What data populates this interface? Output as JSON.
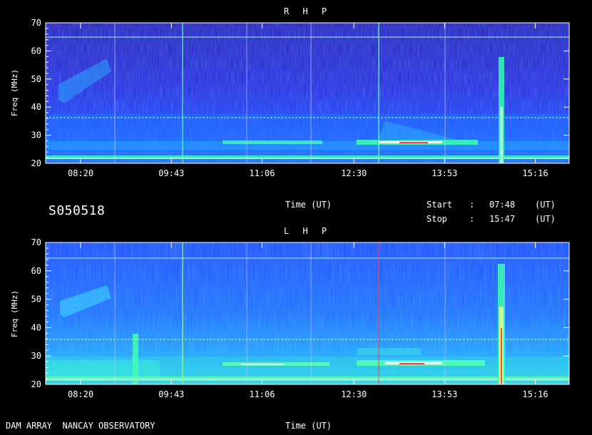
{
  "panels": [
    {
      "title": "R H P",
      "ylabel": "Freq (MHz)",
      "ylim": [
        20,
        70
      ],
      "yticks": [
        "20",
        "30",
        "40",
        "50",
        "60",
        "70"
      ],
      "xticks": [
        "08:20",
        "09:43",
        "11:06",
        "12:30",
        "13:53",
        "15:16"
      ]
    },
    {
      "title": "L H P",
      "ylabel": "Freq (MHz)",
      "ylim": [
        20,
        70
      ],
      "yticks": [
        "20",
        "30",
        "40",
        "50",
        "60",
        "70"
      ],
      "xticks": [
        "08:20",
        "09:43",
        "11:06",
        "12:30",
        "13:53",
        "15:16"
      ]
    }
  ],
  "session_id": "S050518",
  "time_axis_label": "Time (UT)",
  "start": {
    "label": "Start",
    "value": "07:48",
    "unit": "(UT)"
  },
  "stop": {
    "label": "Stop",
    "value": "15:47",
    "unit": "(UT)"
  },
  "footer": {
    "observatory": "DAM ARRAY  NANCAY OBSERVATORY",
    "time_label": "Time (UT)"
  },
  "chart_data": [
    {
      "type": "heatmap",
      "title": "R H P",
      "xlabel": "Time (UT)",
      "ylabel": "Freq (MHz)",
      "xlim": [
        "07:48",
        "15:47"
      ],
      "ylim": [
        20,
        70
      ],
      "x_ticks": [
        "08:20",
        "09:43",
        "11:06",
        "12:30",
        "13:53",
        "15:16"
      ],
      "y_ticks": [
        20,
        30,
        40,
        50,
        60,
        70
      ],
      "colormap": [
        "#1a1090",
        "#1c30ff",
        "#2aa0ff",
        "#30ffb0",
        "#ffffff",
        "#ff2020"
      ],
      "features": [
        {
          "kind": "type-III burst",
          "time": "15:00",
          "freq_range": [
            20,
            58
          ]
        },
        {
          "kind": "continuum band",
          "time_range": [
            "11:00",
            "14:30"
          ],
          "freq": 27
        },
        {
          "kind": "interference line",
          "freq": 64.5
        }
      ]
    },
    {
      "type": "heatmap",
      "title": "L H P",
      "xlabel": "Time (UT)",
      "ylabel": "Freq (MHz)",
      "xlim": [
        "07:48",
        "15:47"
      ],
      "ylim": [
        20,
        70
      ],
      "x_ticks": [
        "08:20",
        "09:43",
        "11:06",
        "12:30",
        "13:53",
        "15:16"
      ],
      "y_ticks": [
        20,
        30,
        40,
        50,
        60,
        70
      ],
      "colormap": [
        "#1a1090",
        "#1c30ff",
        "#2aa0ff",
        "#30ffb0",
        "#ffffff",
        "#ff2020"
      ],
      "features": [
        {
          "kind": "type-III burst",
          "time": "15:00",
          "freq_range": [
            20,
            62
          ]
        },
        {
          "kind": "burst",
          "time": "09:05",
          "freq_range": [
            20,
            38
          ]
        },
        {
          "kind": "continuum band",
          "time_range": [
            "11:00",
            "14:30"
          ],
          "freq": 26.5
        },
        {
          "kind": "interference line",
          "freq": 64.5
        }
      ]
    }
  ]
}
